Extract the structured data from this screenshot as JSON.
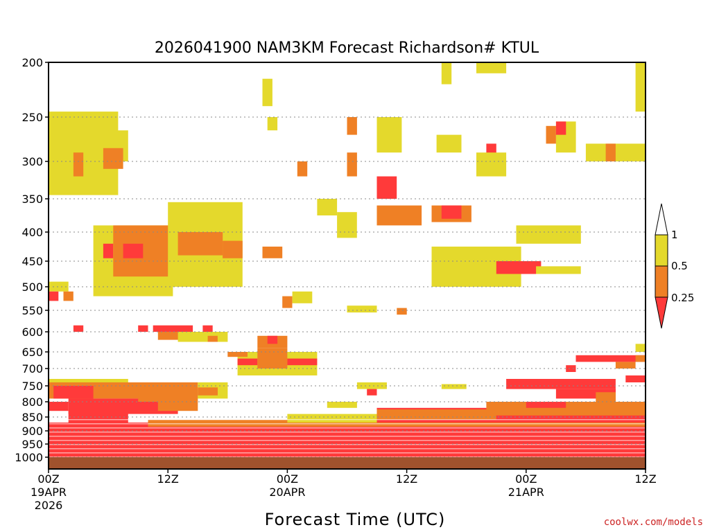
{
  "chart_data": {
    "type": "heatmap",
    "title": "2026041900 NAM3KM Forecast Richardson# KTUL",
    "xlabel": "Forecast Time (UTC)",
    "ylabel": "Pressure (hPa)",
    "credit": "coolwx.com/models",
    "credit_color": "#cc2222",
    "y_levels": [
      "200",
      "250",
      "300",
      "350",
      "400",
      "450",
      "500",
      "550",
      "600",
      "650",
      "700",
      "750",
      "800",
      "850",
      "900",
      "950",
      "1000"
    ],
    "x_ticks": [
      {
        "hour": 0,
        "lines": [
          "00Z",
          "19APR",
          "2026"
        ]
      },
      {
        "hour": 12,
        "lines": [
          "12Z"
        ]
      },
      {
        "hour": 24,
        "lines": [
          "00Z",
          "20APR"
        ]
      },
      {
        "hour": 36,
        "lines": [
          "12Z"
        ]
      },
      {
        "hour": 48,
        "lines": [
          "00Z",
          "21APR"
        ]
      },
      {
        "hour": 60,
        "lines": [
          "12Z"
        ]
      }
    ],
    "xlim": [
      0,
      60
    ],
    "ylim": [
      1000,
      200
    ],
    "colorbar": {
      "labels": [
        "1",
        "0.5",
        "0.25"
      ],
      "colors": {
        "lt025": "#ff3a3a",
        "r025_05": "#ef8025",
        "r05_1": "#e4d92c",
        "ground": "#a0522d"
      }
    },
    "category_codes": {
      "R": "Ri < 0.25",
      "O": "0.25 - 0.5",
      "Y": "0.5 - 1"
    },
    "regions": [
      {
        "c": "Y",
        "h": [
          0,
          7
        ],
        "p": [
          245,
          345
        ]
      },
      {
        "c": "Y",
        "h": [
          6,
          8
        ],
        "p": [
          265,
          300
        ]
      },
      {
        "c": "O",
        "h": [
          2.5,
          3.5
        ],
        "p": [
          290,
          320
        ]
      },
      {
        "c": "O",
        "h": [
          5.5,
          7.5
        ],
        "p": [
          285,
          310
        ]
      },
      {
        "c": "Y",
        "h": [
          4.5,
          12.5
        ],
        "p": [
          390,
          520
        ]
      },
      {
        "c": "O",
        "h": [
          6.5,
          14.5
        ],
        "p": [
          390,
          480
        ]
      },
      {
        "c": "R",
        "h": [
          5.5,
          6.5
        ],
        "p": [
          420,
          445
        ]
      },
      {
        "c": "R",
        "h": [
          7.5,
          9.5
        ],
        "p": [
          420,
          445
        ]
      },
      {
        "c": "Y",
        "h": [
          12,
          19.5
        ],
        "p": [
          355,
          500
        ]
      },
      {
        "c": "O",
        "h": [
          13,
          17.5
        ],
        "p": [
          400,
          440
        ]
      },
      {
        "c": "O",
        "h": [
          17.5,
          19.5
        ],
        "p": [
          415,
          445
        ]
      },
      {
        "c": "O",
        "h": [
          21.5,
          23.5
        ],
        "p": [
          425,
          445
        ]
      },
      {
        "c": "Y",
        "h": [
          29,
          31
        ],
        "p": [
          370,
          410
        ]
      },
      {
        "c": "R",
        "h": [
          33,
          35
        ],
        "p": [
          320,
          350
        ]
      },
      {
        "c": "O",
        "h": [
          33,
          37.5
        ],
        "p": [
          360,
          390
        ]
      },
      {
        "c": "O",
        "h": [
          38.5,
          42.5
        ],
        "p": [
          360,
          385
        ]
      },
      {
        "c": "R",
        "h": [
          39.5,
          41.5
        ],
        "p": [
          360,
          380
        ]
      },
      {
        "c": "Y",
        "h": [
          38.5,
          47.5
        ],
        "p": [
          425,
          500
        ]
      },
      {
        "c": "R",
        "h": [
          45,
          49.5
        ],
        "p": [
          450,
          475
        ]
      },
      {
        "c": "Y",
        "h": [
          47,
          53.5
        ],
        "p": [
          390,
          420
        ]
      },
      {
        "c": "Y",
        "h": [
          49,
          53.5
        ],
        "p": [
          460,
          475
        ]
      },
      {
        "c": "Y",
        "h": [
          51,
          53
        ],
        "p": [
          255,
          290
        ]
      },
      {
        "c": "O",
        "h": [
          50,
          51
        ],
        "p": [
          260,
          280
        ]
      },
      {
        "c": "R",
        "h": [
          51,
          52
        ],
        "p": [
          255,
          270
        ]
      },
      {
        "c": "Y",
        "h": [
          33,
          35.5
        ],
        "p": [
          250,
          290
        ]
      },
      {
        "c": "Y",
        "h": [
          39,
          41.5
        ],
        "p": [
          270,
          290
        ]
      },
      {
        "c": "Y",
        "h": [
          54,
          60
        ],
        "p": [
          280,
          300
        ]
      },
      {
        "c": "O",
        "h": [
          56,
          57
        ],
        "p": [
          280,
          300
        ]
      },
      {
        "c": "Y",
        "h": [
          59,
          60
        ],
        "p": [
          200,
          245
        ]
      },
      {
        "c": "Y",
        "h": [
          43,
          46
        ],
        "p": [
          200,
          210
        ]
      },
      {
        "c": "Y",
        "h": [
          39.5,
          40.5
        ],
        "p": [
          200,
          220
        ]
      },
      {
        "c": "R",
        "h": [
          44,
          45
        ],
        "p": [
          280,
          300
        ]
      },
      {
        "c": "Y",
        "h": [
          43,
          46
        ],
        "p": [
          290,
          320
        ]
      },
      {
        "c": "O",
        "h": [
          30,
          31
        ],
        "p": [
          250,
          270
        ]
      },
      {
        "c": "Y",
        "h": [
          21.5,
          22.5
        ],
        "p": [
          215,
          240
        ]
      },
      {
        "c": "Y",
        "h": [
          22,
          23
        ],
        "p": [
          250,
          265
        ]
      },
      {
        "c": "Y",
        "h": [
          27,
          29
        ],
        "p": [
          350,
          375
        ]
      },
      {
        "c": "O",
        "h": [
          25,
          26
        ],
        "p": [
          300,
          320
        ]
      },
      {
        "c": "O",
        "h": [
          30,
          31
        ],
        "p": [
          290,
          320
        ]
      },
      {
        "c": "Y",
        "h": [
          30,
          33
        ],
        "p": [
          540,
          555
        ]
      },
      {
        "c": "O",
        "h": [
          35,
          36
        ],
        "p": [
          545,
          560
        ]
      },
      {
        "c": "Y",
        "h": [
          24.5,
          26.5
        ],
        "p": [
          510,
          535
        ]
      },
      {
        "c": "O",
        "h": [
          23.5,
          24.5
        ],
        "p": [
          520,
          545
        ]
      },
      {
        "c": "Y",
        "h": [
          0,
          2
        ],
        "p": [
          490,
          510
        ]
      },
      {
        "c": "R",
        "h": [
          0,
          1
        ],
        "p": [
          510,
          530
        ]
      },
      {
        "c": "O",
        "h": [
          1.5,
          2.5
        ],
        "p": [
          510,
          530
        ]
      },
      {
        "c": "R",
        "h": [
          10.5,
          14.5
        ],
        "p": [
          585,
          600
        ]
      },
      {
        "c": "O",
        "h": [
          11,
          15
        ],
        "p": [
          600,
          620
        ]
      },
      {
        "c": "R",
        "h": [
          9,
          10
        ],
        "p": [
          585,
          600
        ]
      },
      {
        "c": "R",
        "h": [
          2.5,
          3.5
        ],
        "p": [
          585,
          600
        ]
      },
      {
        "c": "R",
        "h": [
          15.5,
          16.5
        ],
        "p": [
          585,
          600
        ]
      },
      {
        "c": "Y",
        "h": [
          13,
          18
        ],
        "p": [
          600,
          625
        ]
      },
      {
        "c": "O",
        "h": [
          16,
          17
        ],
        "p": [
          610,
          625
        ]
      },
      {
        "c": "O",
        "h": [
          21,
          24
        ],
        "p": [
          610,
          640
        ]
      },
      {
        "c": "R",
        "h": [
          22,
          23
        ],
        "p": [
          610,
          630
        ]
      },
      {
        "c": "Y",
        "h": [
          19,
          27
        ],
        "p": [
          650,
          720
        ]
      },
      {
        "c": "R",
        "h": [
          19,
          21
        ],
        "p": [
          670,
          690
        ]
      },
      {
        "c": "O",
        "h": [
          21,
          24
        ],
        "p": [
          640,
          700
        ]
      },
      {
        "c": "R",
        "h": [
          24,
          27
        ],
        "p": [
          670,
          690
        ]
      },
      {
        "c": "O",
        "h": [
          18,
          20
        ],
        "p": [
          650,
          665
        ]
      },
      {
        "c": "Y",
        "h": [
          0,
          8
        ],
        "p": [
          730,
          775
        ]
      },
      {
        "c": "O",
        "h": [
          0,
          15
        ],
        "p": [
          740,
          790
        ]
      },
      {
        "c": "R",
        "h": [
          0.5,
          4.5
        ],
        "p": [
          750,
          790
        ]
      },
      {
        "c": "R",
        "h": [
          2,
          13
        ],
        "p": [
          790,
          840
        ]
      },
      {
        "c": "O",
        "h": [
          9,
          15
        ],
        "p": [
          760,
          830
        ]
      },
      {
        "c": "R",
        "h": [
          6,
          11
        ],
        "p": [
          800,
          830
        ]
      },
      {
        "c": "R",
        "h": [
          2,
          8
        ],
        "p": [
          830,
          900
        ]
      },
      {
        "c": "Y",
        "h": [
          15,
          18
        ],
        "p": [
          740,
          790
        ]
      },
      {
        "c": "O",
        "h": [
          15,
          17
        ],
        "p": [
          755,
          780
        ]
      },
      {
        "c": "R",
        "h": [
          0,
          2
        ],
        "p": [
          800,
          830
        ]
      },
      {
        "c": "R",
        "h": [
          0,
          60
        ],
        "p": [
          870,
          1000
        ]
      },
      {
        "c": "O",
        "h": [
          10,
          60
        ],
        "p": [
          860,
          885
        ]
      },
      {
        "c": "R",
        "h": [
          33,
          60
        ],
        "p": [
          820,
          870
        ]
      },
      {
        "c": "O",
        "h": [
          33,
          45
        ],
        "p": [
          825,
          860
        ]
      },
      {
        "c": "Y",
        "h": [
          24,
          33
        ],
        "p": [
          840,
          870
        ]
      },
      {
        "c": "R",
        "h": [
          46,
          57
        ],
        "p": [
          730,
          760
        ]
      },
      {
        "c": "R",
        "h": [
          51,
          57
        ],
        "p": [
          760,
          790
        ]
      },
      {
        "c": "O",
        "h": [
          55,
          57
        ],
        "p": [
          770,
          800
        ]
      },
      {
        "c": "R",
        "h": [
          53,
          60
        ],
        "p": [
          660,
          680
        ]
      },
      {
        "c": "O",
        "h": [
          57,
          59
        ],
        "p": [
          680,
          700
        ]
      },
      {
        "c": "R",
        "h": [
          58,
          60
        ],
        "p": [
          720,
          740
        ]
      },
      {
        "c": "O",
        "h": [
          59,
          60
        ],
        "p": [
          660,
          680
        ]
      },
      {
        "c": "R",
        "h": [
          52,
          53
        ],
        "p": [
          690,
          710
        ]
      },
      {
        "c": "Y",
        "h": [
          59,
          60
        ],
        "p": [
          630,
          650
        ]
      },
      {
        "c": "R",
        "h": [
          57,
          59.5
        ],
        "p": [
          800,
          860
        ]
      },
      {
        "c": "O",
        "h": [
          44,
          60
        ],
        "p": [
          800,
          845
        ]
      },
      {
        "c": "R",
        "h": [
          48,
          52
        ],
        "p": [
          800,
          820
        ]
      },
      {
        "c": "Y",
        "h": [
          39.5,
          42
        ],
        "p": [
          745,
          760
        ]
      },
      {
        "c": "Y",
        "h": [
          28,
          31
        ],
        "p": [
          800,
          820
        ]
      },
      {
        "c": "Y",
        "h": [
          31,
          34
        ],
        "p": [
          740,
          760
        ]
      },
      {
        "c": "R",
        "h": [
          32,
          33
        ],
        "p": [
          760,
          780
        ]
      }
    ]
  }
}
